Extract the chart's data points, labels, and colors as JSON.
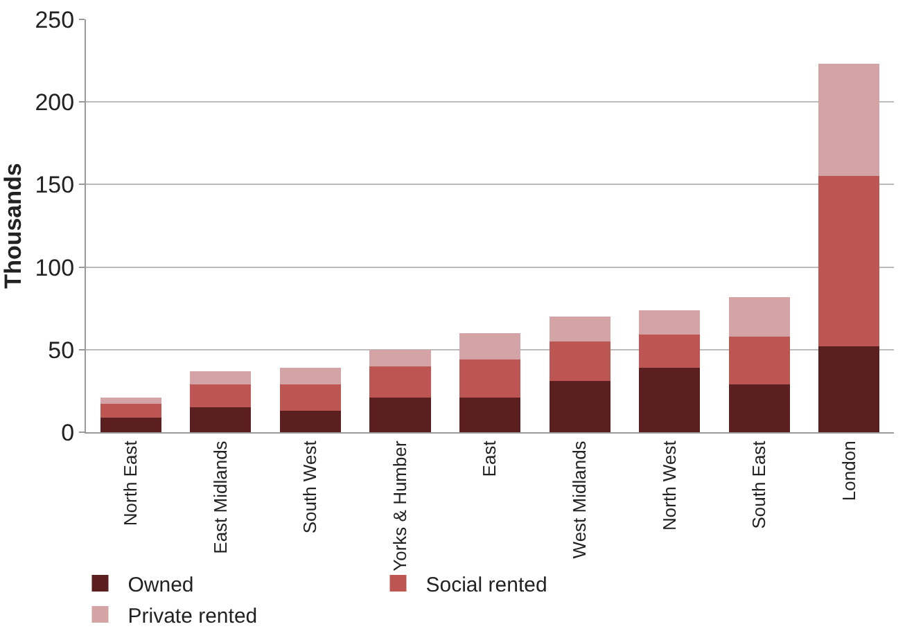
{
  "chart_data": {
    "type": "bar",
    "stacked": true,
    "ylabel": "Thousands",
    "categories": [
      "North East",
      "East Midlands",
      "South West",
      "Yorks & Humber",
      "East",
      "West Midlands",
      "North West",
      "South East",
      "London"
    ],
    "series": [
      {
        "name": "Owned",
        "color": "#5c1f1f",
        "values": [
          9,
          15,
          13,
          21,
          21,
          31,
          39,
          29,
          52
        ]
      },
      {
        "name": "Social rented",
        "color": "#bd5653",
        "values": [
          8,
          14,
          16,
          19,
          23,
          24,
          20,
          29,
          103
        ]
      },
      {
        "name": "Private rented",
        "color": "#d4a3a5",
        "values": [
          4,
          8,
          10,
          10,
          16,
          15,
          15,
          24,
          68
        ]
      }
    ],
    "ylim": [
      0,
      250
    ],
    "yticks": [
      0,
      50,
      100,
      150,
      200,
      250
    ],
    "grid": "y",
    "legend": "bottom"
  }
}
